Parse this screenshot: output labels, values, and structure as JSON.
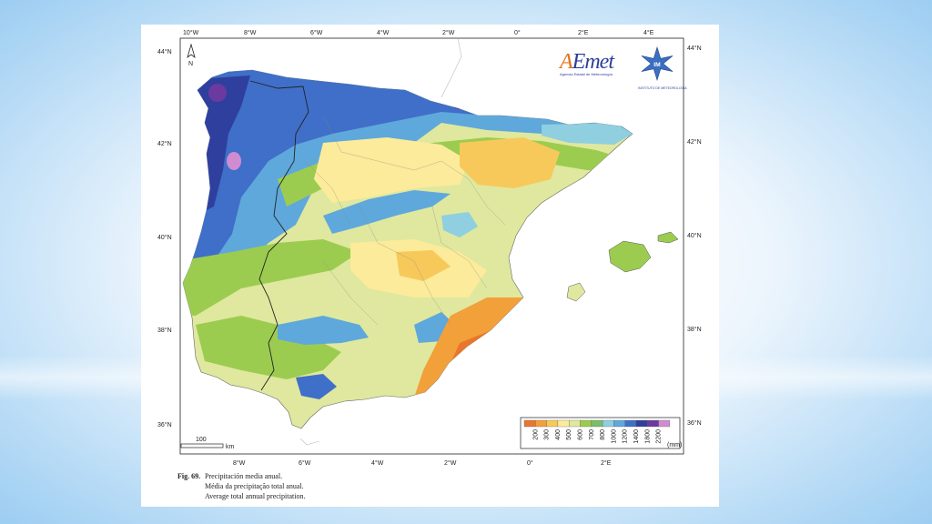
{
  "map": {
    "top_labels": [
      "10°W",
      "8°W",
      "6°W",
      "4°W",
      "2°W",
      "0°",
      "2°E",
      "4°E"
    ],
    "bottom_labels": [
      "8°W",
      "6°W",
      "4°W",
      "2°W",
      "0°",
      "2°E"
    ],
    "left_labels": [
      "44°N",
      "42°N",
      "40°N",
      "38°N",
      "36°N"
    ],
    "right_labels": [
      "44°N",
      "42°N",
      "40°N",
      "38°N",
      "36°N"
    ],
    "north_label": "N",
    "scale_value": "100",
    "scale_unit": "km"
  },
  "logos": {
    "aemet_letter": "A",
    "aemet_rest": "Emet",
    "aemet_sub": "Agencia Estatal de Meteorología",
    "ipma_mark": "IM",
    "ipma_sub": "INSTITUTO DE METEOROLOGIA"
  },
  "legend": {
    "values": [
      "200",
      "300",
      "400",
      "500",
      "600",
      "700",
      "800",
      "1000",
      "1200",
      "1400",
      "1800",
      "2200"
    ],
    "colors": [
      "#e9762c",
      "#f2a03a",
      "#f7c95a",
      "#fbeb9a",
      "#dfe89e",
      "#9ccc4f",
      "#79be6c",
      "#8fcfe0",
      "#5fa8dc",
      "#3f6fc8",
      "#2f3f9e",
      "#6b3aa0",
      "#d08cd0"
    ],
    "unit": "(mm)"
  },
  "caption": {
    "fig": "Fig. 69.",
    "es": "Precipitación media anual.",
    "pt": "Média da precipitação total anual.",
    "en": "Average total annual precipitation."
  }
}
